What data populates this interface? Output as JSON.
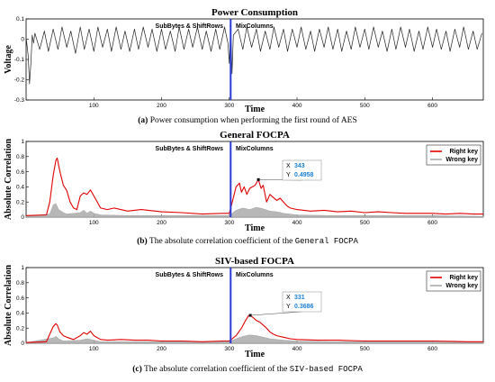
{
  "chart_data": [
    {
      "type": "line",
      "title": "Power Consumption",
      "xlabel": "Time",
      "ylabel": "Voltage",
      "xlim": [
        0,
        675
      ],
      "ylim": [
        -0.3,
        0.1
      ],
      "x_ticks": [
        "100",
        "200",
        "300",
        "400",
        "500",
        "600"
      ],
      "y_ticks": [
        "0.1",
        "0",
        "-0.1",
        "-0.2",
        "-0.3"
      ],
      "marker_x": 302,
      "annotations": [
        "SubBytes & ShiftRows",
        "MixColumns"
      ],
      "series": [
        {
          "color": "#222222",
          "x": [
            0,
            3,
            5,
            7,
            9,
            11,
            13,
            20,
            27,
            33,
            40,
            47,
            53,
            60,
            66,
            73,
            80,
            86,
            93,
            100,
            106,
            113,
            120,
            126,
            133,
            140,
            146,
            153,
            160,
            166,
            173,
            180,
            186,
            193,
            200,
            206,
            213,
            220,
            226,
            233,
            240,
            246,
            253,
            260,
            266,
            273,
            280,
            286,
            293,
            298,
            300,
            302,
            304,
            306,
            313,
            320,
            326,
            333,
            340,
            346,
            353,
            360,
            366,
            373,
            380,
            386,
            393,
            400,
            406,
            413,
            420,
            426,
            433,
            440,
            446,
            453,
            460,
            466,
            473,
            480,
            486,
            493,
            500,
            506,
            513,
            520,
            526,
            533,
            540,
            546,
            553,
            560,
            566,
            573,
            580,
            586,
            593,
            600,
            606,
            613,
            620,
            626,
            633,
            640,
            646,
            653,
            660,
            666,
            673
          ],
          "values": [
            0.01,
            -0.08,
            -0.22,
            -0.12,
            0.02,
            -0.02,
            0.03,
            -0.05,
            0.04,
            -0.06,
            0.05,
            -0.05,
            0.06,
            -0.04,
            0.04,
            -0.07,
            0.06,
            -0.05,
            0.05,
            -0.06,
            0.06,
            -0.04,
            0.05,
            -0.06,
            0.06,
            -0.05,
            0.04,
            -0.06,
            0.05,
            -0.05,
            0.06,
            -0.04,
            0.05,
            -0.06,
            0.05,
            -0.05,
            0.04,
            -0.06,
            0.06,
            -0.05,
            0.05,
            -0.04,
            0.06,
            -0.05,
            0.04,
            -0.06,
            0.05,
            -0.05,
            0.06,
            -0.02,
            -0.12,
            0.06,
            -0.17,
            0.02,
            0.05,
            -0.05,
            0.06,
            -0.04,
            0.05,
            -0.06,
            0.04,
            -0.05,
            0.06,
            -0.04,
            0.05,
            -0.06,
            0.05,
            -0.04,
            0.06,
            -0.05,
            0.04,
            -0.06,
            0.05,
            -0.04,
            0.06,
            -0.05,
            0.05,
            -0.06,
            0.04,
            -0.05,
            0.06,
            -0.04,
            0.05,
            -0.05,
            0.06,
            -0.04,
            0.04,
            -0.06,
            0.05,
            -0.05,
            0.06,
            -0.04,
            0.05,
            -0.06,
            0.04,
            -0.05,
            0.06,
            -0.04,
            0.05,
            -0.05,
            0.04,
            -0.06,
            0.05,
            -0.04,
            0.06,
            -0.05,
            0.04,
            -0.05,
            0.03
          ]
        }
      ]
    },
    {
      "type": "area",
      "title": "General FOCPA",
      "xlabel": "Time",
      "ylabel": "Absolute Correlation",
      "xlim": [
        0,
        675
      ],
      "ylim": [
        0,
        1
      ],
      "x_ticks": [
        "100",
        "200",
        "300",
        "400",
        "500",
        "600"
      ],
      "y_ticks": [
        "1",
        "0.8",
        "0.6",
        "0.4",
        "0.2",
        "0"
      ],
      "marker_x": 302,
      "annotations": [
        "SubBytes & ShiftRows",
        "MixColumns"
      ],
      "datatip": {
        "x_label": "X",
        "x_value": "343",
        "y_label": "Y",
        "y_value": "0.4958",
        "x": 343,
        "y": 0.4958
      },
      "series": [
        {
          "name": "Right key",
          "color": "#e00000",
          "x": [
            0,
            30,
            35,
            40,
            44,
            46,
            50,
            55,
            60,
            65,
            70,
            75,
            80,
            85,
            90,
            95,
            100,
            110,
            120,
            130,
            150,
            170,
            200,
            230,
            260,
            290,
            300,
            305,
            310,
            315,
            318,
            322,
            326,
            330,
            334,
            338,
            343,
            347,
            350,
            355,
            360,
            365,
            370,
            375,
            380,
            385,
            390,
            400,
            420,
            440,
            460,
            480,
            500,
            520,
            540,
            560,
            580,
            600,
            620,
            640,
            660,
            675
          ],
          "values": [
            0.02,
            0.03,
            0.2,
            0.55,
            0.75,
            0.78,
            0.6,
            0.42,
            0.35,
            0.2,
            0.12,
            0.1,
            0.28,
            0.32,
            0.3,
            0.36,
            0.28,
            0.12,
            0.1,
            0.12,
            0.08,
            0.1,
            0.07,
            0.06,
            0.04,
            0.05,
            0.05,
            0.22,
            0.4,
            0.45,
            0.33,
            0.4,
            0.3,
            0.38,
            0.4,
            0.42,
            0.4958,
            0.38,
            0.42,
            0.2,
            0.3,
            0.26,
            0.22,
            0.25,
            0.2,
            0.15,
            0.12,
            0.1,
            0.08,
            0.09,
            0.07,
            0.08,
            0.06,
            0.07,
            0.06,
            0.05,
            0.05,
            0.05,
            0.04,
            0.05,
            0.04,
            0.04
          ]
        },
        {
          "name": "Wrong key",
          "color": "#aaaaaa",
          "x": [
            0,
            35,
            40,
            44,
            48,
            55,
            60,
            80,
            85,
            90,
            95,
            100,
            110,
            150,
            200,
            250,
            300,
            310,
            320,
            330,
            340,
            350,
            360,
            370,
            380,
            400,
            450,
            500,
            600,
            675
          ],
          "values": [
            0.01,
            0.04,
            0.16,
            0.18,
            0.1,
            0.06,
            0.04,
            0.06,
            0.09,
            0.05,
            0.08,
            0.05,
            0.03,
            0.02,
            0.02,
            0.02,
            0.02,
            0.09,
            0.12,
            0.1,
            0.13,
            0.11,
            0.08,
            0.07,
            0.05,
            0.03,
            0.02,
            0.02,
            0.02,
            0.01
          ]
        }
      ]
    },
    {
      "type": "area",
      "title": "SIV-based FOCPA",
      "xlabel": "Time",
      "ylabel": "Absolute Correlation",
      "xlim": [
        0,
        675
      ],
      "ylim": [
        0,
        1
      ],
      "x_ticks": [
        "100",
        "200",
        "300",
        "400",
        "500",
        "600"
      ],
      "y_ticks": [
        "1",
        "0.8",
        "0.6",
        "0.4",
        "0.2",
        "0"
      ],
      "marker_x": 302,
      "annotations": [
        "SubBytes & ShiftRows",
        "MixColumns"
      ],
      "datatip": {
        "x_label": "X",
        "x_value": "331",
        "y_label": "Y",
        "y_value": "0.3686",
        "x": 331,
        "y": 0.3686
      },
      "series": [
        {
          "name": "Right key",
          "color": "#e00000",
          "x": [
            0,
            30,
            35,
            40,
            44,
            46,
            50,
            55,
            60,
            70,
            80,
            85,
            90,
            95,
            100,
            110,
            120,
            140,
            160,
            180,
            200,
            230,
            260,
            290,
            300,
            310,
            318,
            324,
            328,
            331,
            335,
            340,
            345,
            350,
            355,
            360,
            365,
            370,
            380,
            390,
            400,
            430,
            460,
            500,
            550,
            600,
            650,
            675
          ],
          "values": [
            0.01,
            0.02,
            0.12,
            0.22,
            0.26,
            0.24,
            0.15,
            0.1,
            0.08,
            0.05,
            0.1,
            0.14,
            0.12,
            0.16,
            0.1,
            0.05,
            0.04,
            0.05,
            0.04,
            0.04,
            0.03,
            0.03,
            0.02,
            0.03,
            0.03,
            0.1,
            0.2,
            0.3,
            0.36,
            0.3686,
            0.34,
            0.3,
            0.28,
            0.24,
            0.2,
            0.15,
            0.12,
            0.1,
            0.08,
            0.06,
            0.05,
            0.04,
            0.04,
            0.03,
            0.03,
            0.03,
            0.02,
            0.02
          ]
        },
        {
          "name": "Wrong key",
          "color": "#aaaaaa",
          "x": [
            0,
            40,
            44,
            48,
            55,
            80,
            90,
            95,
            100,
            110,
            150,
            200,
            250,
            300,
            310,
            320,
            330,
            340,
            350,
            360,
            380,
            400,
            450,
            500,
            600,
            675
          ],
          "values": [
            0.01,
            0.07,
            0.09,
            0.06,
            0.03,
            0.04,
            0.06,
            0.05,
            0.04,
            0.02,
            0.02,
            0.02,
            0.02,
            0.02,
            0.06,
            0.09,
            0.11,
            0.1,
            0.08,
            0.06,
            0.04,
            0.03,
            0.02,
            0.02,
            0.02,
            0.01
          ]
        }
      ]
    }
  ],
  "captions": [
    {
      "label": "(a)",
      "text": "Power consumption when performing the first round of AES",
      "code": "",
      "tail": ""
    },
    {
      "label": "(b)",
      "text": "The absolute correlation coefficient of the",
      "code": "General FOCPA",
      "tail": ""
    },
    {
      "label": "(c)",
      "text": "The absolute correlation coefficient of the",
      "code": "SIV-based FOCPA",
      "tail": ""
    }
  ]
}
